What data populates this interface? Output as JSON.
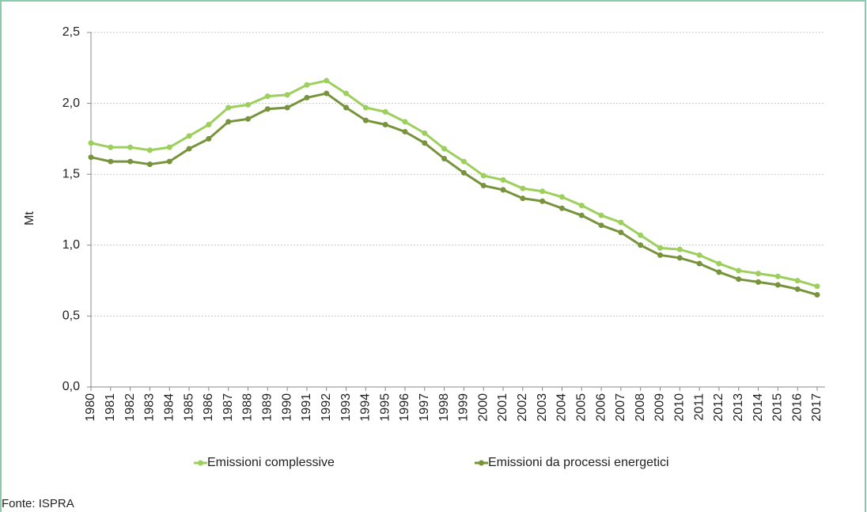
{
  "chart_data": {
    "type": "line",
    "y_label": "Mt",
    "source": "Fonte: ISPRA",
    "categories": [
      "1980",
      "1981",
      "1982",
      "1983",
      "1984",
      "1985",
      "1986",
      "1987",
      "1988",
      "1989",
      "1990",
      "1991",
      "1992",
      "1993",
      "1994",
      "1995",
      "1996",
      "1997",
      "1998",
      "1999",
      "2000",
      "2001",
      "2002",
      "2003",
      "2004",
      "2005",
      "2006",
      "2007",
      "2008",
      "2009",
      "2010",
      "2011",
      "2012",
      "2013",
      "2014",
      "2015",
      "2016",
      "2017"
    ],
    "series": [
      {
        "name": "Emissioni complessive",
        "color": "#9ccf5c",
        "values": [
          1.72,
          1.69,
          1.69,
          1.67,
          1.69,
          1.77,
          1.85,
          1.97,
          1.99,
          2.05,
          2.06,
          2.13,
          2.16,
          2.07,
          1.97,
          1.94,
          1.87,
          1.79,
          1.68,
          1.59,
          1.49,
          1.46,
          1.4,
          1.38,
          1.34,
          1.28,
          1.21,
          1.16,
          1.07,
          0.98,
          0.97,
          0.93,
          0.87,
          0.82,
          0.8,
          0.78,
          0.75,
          0.71
        ]
      },
      {
        "name": "Emissioni da processi energetici",
        "color": "#77933c",
        "values": [
          1.62,
          1.59,
          1.59,
          1.57,
          1.59,
          1.68,
          1.75,
          1.87,
          1.89,
          1.96,
          1.97,
          2.04,
          2.07,
          1.97,
          1.88,
          1.85,
          1.8,
          1.72,
          1.61,
          1.51,
          1.42,
          1.39,
          1.33,
          1.31,
          1.26,
          1.21,
          1.14,
          1.09,
          1.0,
          0.93,
          0.91,
          0.87,
          0.81,
          0.76,
          0.74,
          0.72,
          0.69,
          0.65
        ]
      }
    ],
    "ylim": [
      0,
      2.5
    ],
    "yticks": [
      {
        "value": 0,
        "label": "0,0"
      },
      {
        "value": 0.5,
        "label": "0,5"
      },
      {
        "value": 1,
        "label": "1,0"
      },
      {
        "value": 1.5,
        "label": "1,5"
      },
      {
        "value": 2,
        "label": "2,0"
      },
      {
        "value": 2.5,
        "label": "2,5"
      }
    ],
    "grid": true,
    "legend": "bottom"
  }
}
